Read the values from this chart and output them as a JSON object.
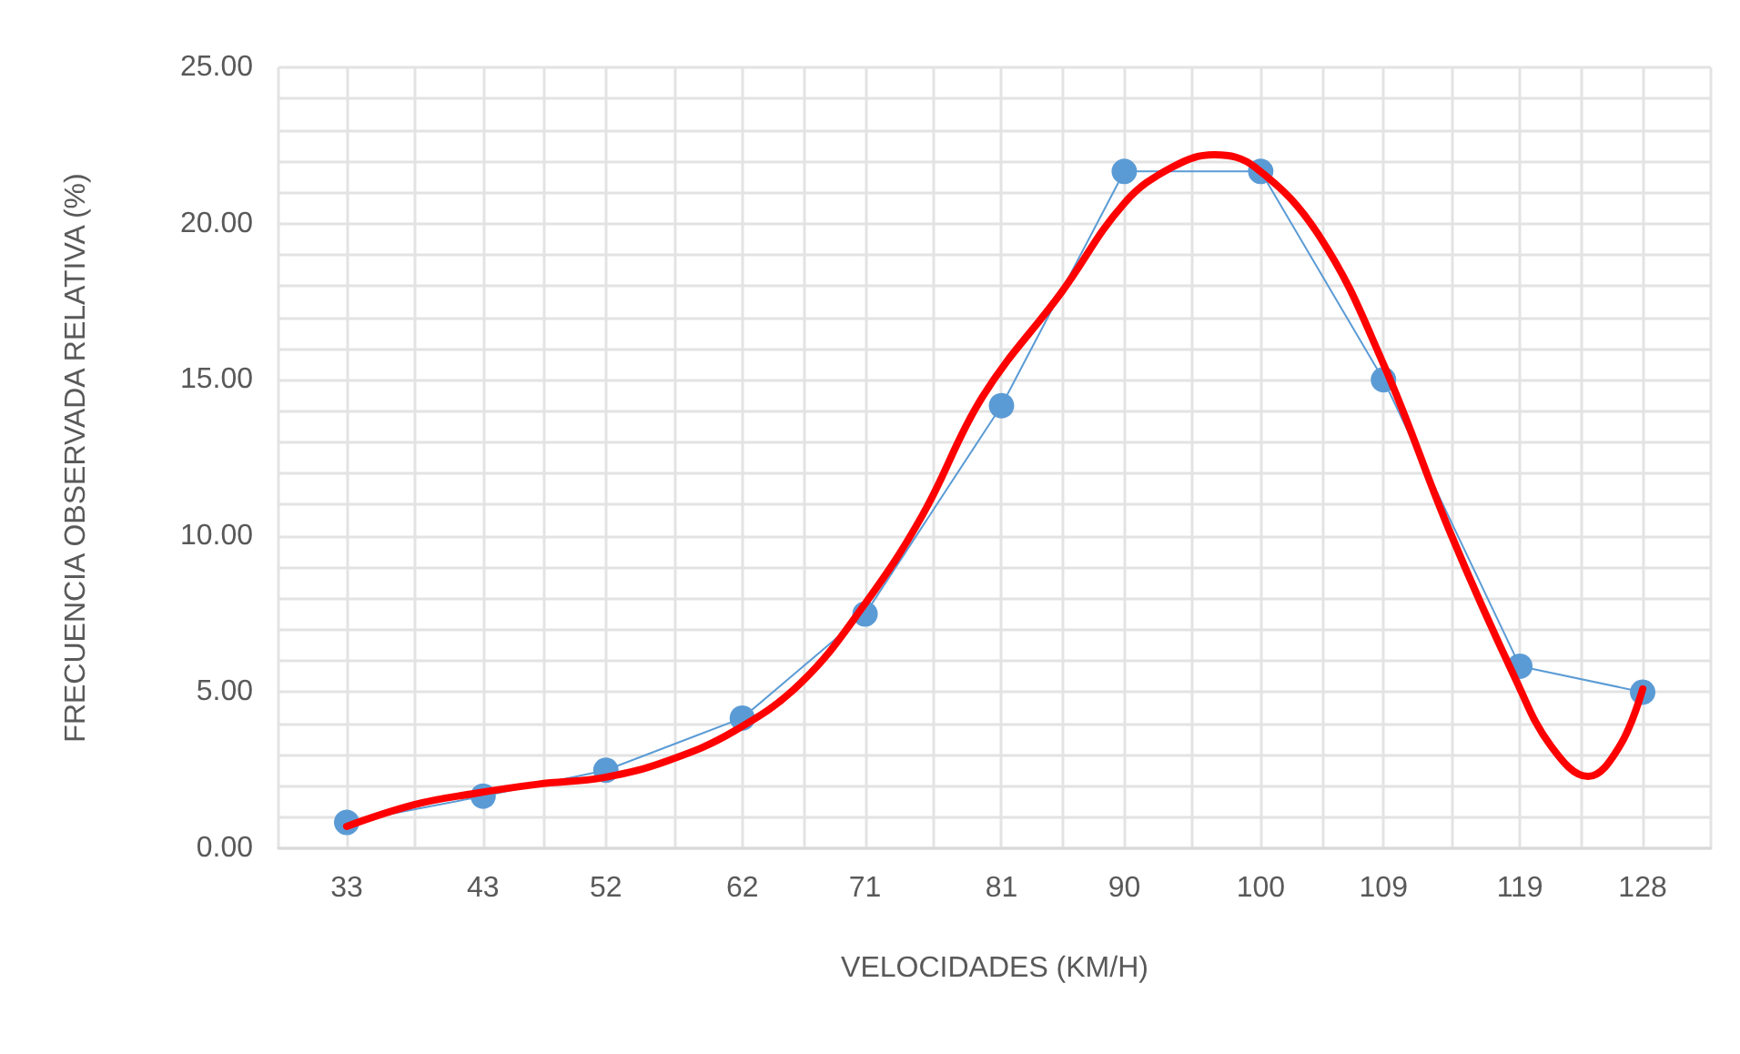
{
  "chart_data": {
    "type": "line",
    "xlabel": "VELOCIDADES (KM/H)",
    "ylabel": "FRECUENCIA OBSERVADA RELATIVA (%)",
    "x": [
      33,
      43,
      52,
      62,
      71,
      81,
      90,
      100,
      109,
      119,
      128
    ],
    "series": [
      {
        "color": "#5b9bd5",
        "values": [
          0.83,
          1.67,
          2.5,
          4.17,
          7.5,
          14.17,
          21.67,
          21.67,
          15.0,
          5.83,
          5.0
        ]
      },
      {
        "color": "#ff0000",
        "marker": "none",
        "x": [
          33,
          38,
          42.3,
          47,
          51.9,
          56.5,
          61.4,
          66.3,
          71,
          75.2,
          79.6,
          85.4,
          90,
          93.5,
          96.6,
          99.6,
          104.3,
          109,
          113.9,
          118.7,
          121.3,
          124,
          126.3,
          128
        ],
        "values": [
          0.7,
          1.4,
          1.75,
          2.05,
          2.27,
          2.8,
          3.75,
          5.3,
          7.83,
          10.66,
          14.45,
          17.8,
          20.65,
          21.8,
          22.2,
          21.8,
          19.6,
          15.5,
          10.1,
          5.4,
          3.26,
          2.3,
          3.26,
          5.1
        ]
      }
    ],
    "marker": "circle",
    "grid": true,
    "xlim": [
      28,
      133
    ],
    "xticks": [
      {
        "value": 28,
        "label": null
      },
      33,
      {
        "value": 38,
        "label": null
      },
      43,
      {
        "value": 47.5,
        "label": null
      },
      52,
      {
        "value": 57,
        "label": null
      },
      62,
      {
        "value": 66.5,
        "label": null
      },
      71,
      {
        "value": 76,
        "label": null
      },
      81,
      {
        "value": 85.5,
        "label": null
      },
      90,
      {
        "value": 95,
        "label": null
      },
      100,
      {
        "value": 104.5,
        "label": null
      },
      109,
      {
        "value": 114,
        "label": null
      },
      119,
      {
        "value": 123.5,
        "label": null
      },
      128,
      {
        "value": 133,
        "label": null
      }
    ],
    "ylim": [
      0,
      25
    ],
    "yticks": [
      {
        "value": 0,
        "label": "0.00"
      },
      {
        "value": 1,
        "label": null
      },
      {
        "value": 2,
        "label": null
      },
      {
        "value": 3,
        "label": null
      },
      {
        "value": 4,
        "label": null
      },
      {
        "value": 5,
        "label": "5.00"
      },
      {
        "value": 6,
        "label": null
      },
      {
        "value": 7,
        "label": null
      },
      {
        "value": 8,
        "label": null
      },
      {
        "value": 9,
        "label": null
      },
      {
        "value": 10,
        "label": "10.00"
      },
      {
        "value": 11,
        "label": null
      },
      {
        "value": 12,
        "label": null
      },
      {
        "value": 13,
        "label": null
      },
      {
        "value": 14,
        "label": null
      },
      {
        "value": 15,
        "label": "15.00"
      },
      {
        "value": 16,
        "label": null
      },
      {
        "value": 17,
        "label": null
      },
      {
        "value": 18,
        "label": null
      },
      {
        "value": 19,
        "label": null
      },
      {
        "value": 20,
        "label": "20.00"
      },
      {
        "value": 21,
        "label": null
      },
      {
        "value": 22,
        "label": null
      },
      {
        "value": 23,
        "label": null
      },
      {
        "value": 24,
        "label": null
      },
      {
        "value": 25,
        "label": "25.00"
      }
    ]
  }
}
